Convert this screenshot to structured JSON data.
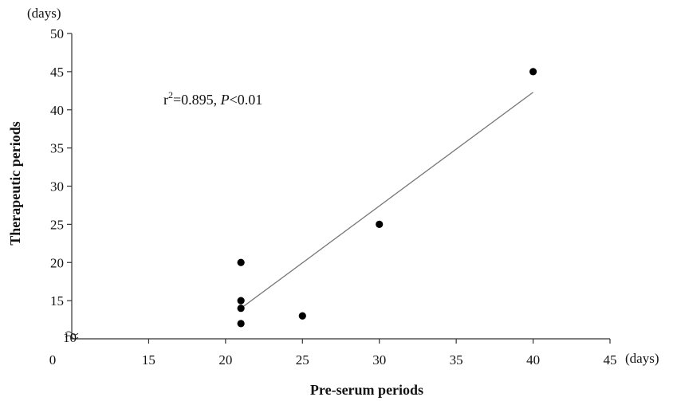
{
  "chart_data": {
    "type": "scatter",
    "xlabel": "Pre-serum periods",
    "ylabel": "Therapeutic periods",
    "x_unit": "(days)",
    "y_unit": "(days)",
    "x_ticks": [
      0,
      15,
      20,
      25,
      30,
      35,
      40,
      45
    ],
    "y_ticks": [
      15,
      20,
      25,
      30,
      35,
      40,
      45,
      50
    ],
    "y_origin_label": "10",
    "axis_break": true,
    "xlim": [
      10,
      45
    ],
    "ylim": [
      10,
      50
    ],
    "grid": false,
    "points": [
      {
        "x": 21,
        "y": 20
      },
      {
        "x": 21,
        "y": 15
      },
      {
        "x": 21,
        "y": 14
      },
      {
        "x": 21,
        "y": 12
      },
      {
        "x": 25,
        "y": 13
      },
      {
        "x": 30,
        "y": 25
      },
      {
        "x": 40,
        "y": 45
      }
    ],
    "trendline": {
      "x": [
        21,
        40
      ],
      "y": [
        14,
        42.3
      ]
    },
    "annotation": {
      "r": "r",
      "sup": "2",
      "value": "=0.895, ",
      "p_italic": "P",
      "p_rest": "<0.01"
    }
  }
}
